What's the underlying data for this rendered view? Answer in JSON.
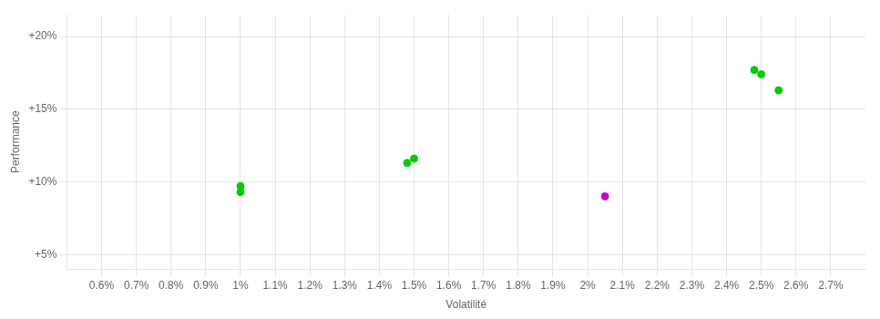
{
  "chart_data": {
    "type": "scatter",
    "xlabel": "Volatilité",
    "ylabel": "Performance",
    "xlim": [
      0.005,
      0.028
    ],
    "ylim": [
      0.04,
      0.215
    ],
    "xticks": [
      {
        "value": 0.006,
        "label": "0.6%"
      },
      {
        "value": 0.007,
        "label": "0.7%"
      },
      {
        "value": 0.008,
        "label": "0.8%"
      },
      {
        "value": 0.009,
        "label": "0.9%"
      },
      {
        "value": 0.01,
        "label": "1%"
      },
      {
        "value": 0.011,
        "label": "1.1%"
      },
      {
        "value": 0.012,
        "label": "1.2%"
      },
      {
        "value": 0.013,
        "label": "1.3%"
      },
      {
        "value": 0.014,
        "label": "1.4%"
      },
      {
        "value": 0.015,
        "label": "1.5%"
      },
      {
        "value": 0.016,
        "label": "1.6%"
      },
      {
        "value": 0.017,
        "label": "1.7%"
      },
      {
        "value": 0.018,
        "label": "1.8%"
      },
      {
        "value": 0.019,
        "label": "1.9%"
      },
      {
        "value": 0.02,
        "label": "2%"
      },
      {
        "value": 0.021,
        "label": "2.1%"
      },
      {
        "value": 0.022,
        "label": "2.2%"
      },
      {
        "value": 0.023,
        "label": "2.3%"
      },
      {
        "value": 0.024,
        "label": "2.4%"
      },
      {
        "value": 0.025,
        "label": "2.5%"
      },
      {
        "value": 0.026,
        "label": "2.6%"
      },
      {
        "value": 0.027,
        "label": "2.7%"
      }
    ],
    "yticks": [
      {
        "value": 0.05,
        "label": "+5%"
      },
      {
        "value": 0.1,
        "label": "+10%"
      },
      {
        "value": 0.15,
        "label": "+15%"
      },
      {
        "value": 0.2,
        "label": "+20%"
      }
    ],
    "grid": true,
    "series": [
      {
        "color": "#00cc00",
        "x": [
          0.01,
          0.01,
          0.015,
          0.0148,
          0.0248,
          0.025,
          0.0255
        ],
        "y": [
          0.097,
          0.093,
          0.116,
          0.113,
          0.177,
          0.174,
          0.163
        ]
      },
      {
        "color": "#cc00cc",
        "x": [
          0.0205
        ],
        "y": [
          0.09
        ]
      }
    ]
  }
}
